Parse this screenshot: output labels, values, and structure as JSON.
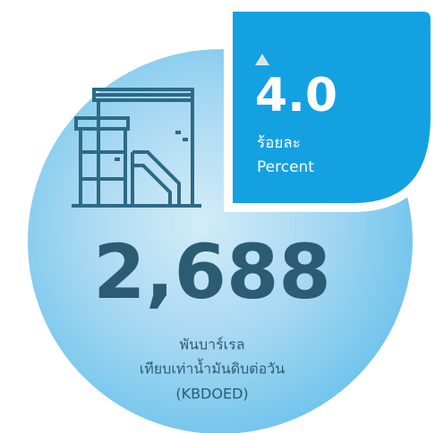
{
  "badge": {
    "value": "4.0",
    "label_th": "ร้อยละ",
    "label_en": "Percent"
  },
  "main": {
    "value": "2,688",
    "unit_line1": "พันบาร์เรล",
    "unit_line2": "เทียบเท่าน้ำมันดิบต่อวัน",
    "unit_line3": "(KBDOED)"
  }
}
